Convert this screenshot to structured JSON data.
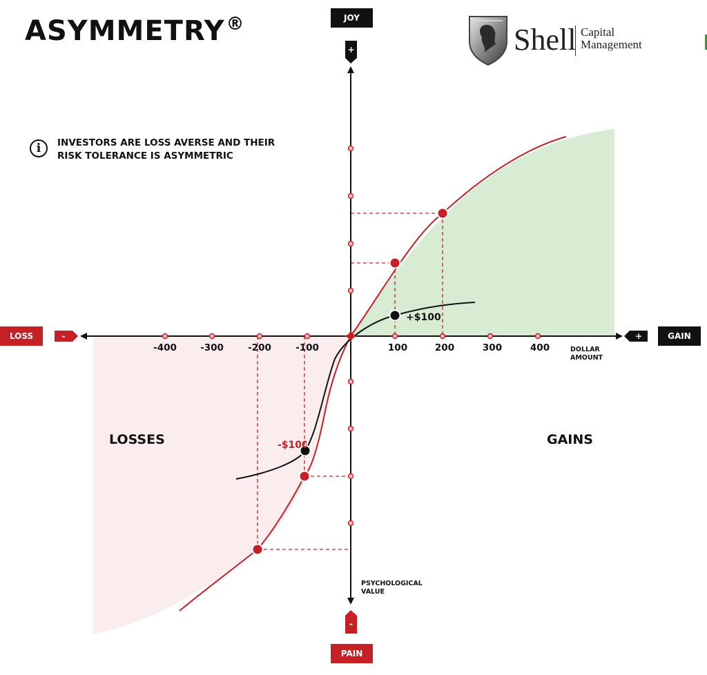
{
  "header": {
    "title": "ASYMMETRY",
    "registered": "®",
    "logo": {
      "word": "Shell",
      "sub_line1": "Capital",
      "sub_line2": "Management"
    }
  },
  "note": {
    "icon": "info-icon",
    "icon_glyph": "i",
    "line1": "INVESTORS ARE LOSS AVERSE AND THEIR",
    "line2": "RISK TOLERANCE IS ASYMMETRIC"
  },
  "axes": {
    "top_label": "JOY",
    "top_sign": "+",
    "bottom_label": "PAIN",
    "bottom_sign": "-",
    "left_label": "LOSS",
    "left_sign": "-",
    "right_label": "GAIN",
    "right_sign": "+",
    "x_title_line1": "DOLLAR",
    "x_title_line2": "AMOUNT",
    "y_title_line1": "PSYCHOLOGICAL",
    "y_title_line2": "VALUE",
    "x_ticks": [
      "-400",
      "-300",
      "-200",
      "-100",
      "100",
      "200",
      "300",
      "400"
    ]
  },
  "regions": {
    "losses": "LOSSES",
    "gains": "GAINS"
  },
  "callouts": {
    "gain": "+$100",
    "loss": "-$100"
  },
  "colors": {
    "red": "#c62027",
    "dark": "#111111",
    "gain_fill": "#d8ecd4",
    "loss_fill": "#fbecee"
  }
}
